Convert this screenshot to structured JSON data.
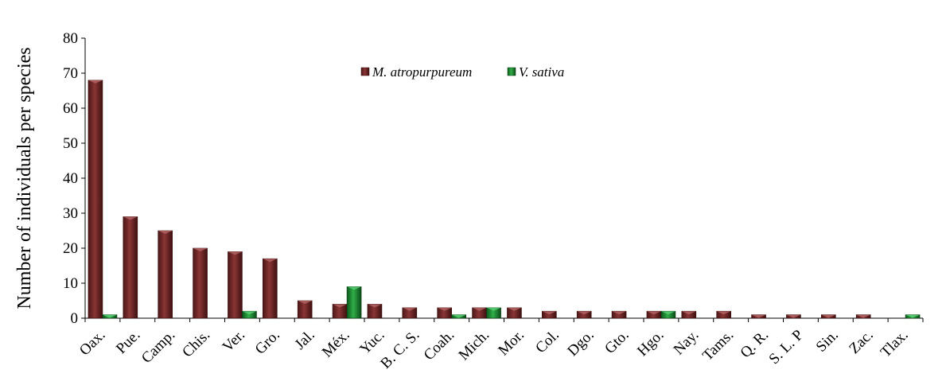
{
  "chart_data": {
    "type": "bar",
    "title": "",
    "xlabel": "",
    "ylabel": "Number of individuals per species",
    "ylim": [
      0,
      80
    ],
    "yticks": [
      0,
      10,
      20,
      30,
      40,
      50,
      60,
      70,
      80
    ],
    "grid": false,
    "legend_position": "top-center",
    "categories": [
      "Oax.",
      "Pue.",
      "Camp.",
      "Chis.",
      "Ver.",
      "Gro.",
      "Jal.",
      "Méx.",
      "Yuc.",
      "B. C. S.",
      "Coah.",
      "Mich.",
      "Mor.",
      "Col.",
      "Dgo.",
      "Gto.",
      "Hgo.",
      "Nay.",
      "Tams.",
      "Q. R.",
      "S. L. P",
      "Sin.",
      "Zac.",
      "Tlax."
    ],
    "series": [
      {
        "name": "M. atropurpureum",
        "color": "#7a2a2a",
        "values": [
          68,
          29,
          25,
          20,
          19,
          17,
          5,
          4,
          4,
          3,
          3,
          3,
          3,
          2,
          2,
          2,
          2,
          2,
          2,
          1,
          1,
          1,
          1,
          0
        ]
      },
      {
        "name": "V. sativa",
        "color": "#1f8a33",
        "values": [
          1,
          0,
          0,
          0,
          2,
          0,
          0,
          9,
          0,
          0,
          1,
          3,
          0,
          0,
          0,
          0,
          2,
          0,
          0,
          0,
          0,
          0,
          0,
          1
        ]
      }
    ]
  }
}
